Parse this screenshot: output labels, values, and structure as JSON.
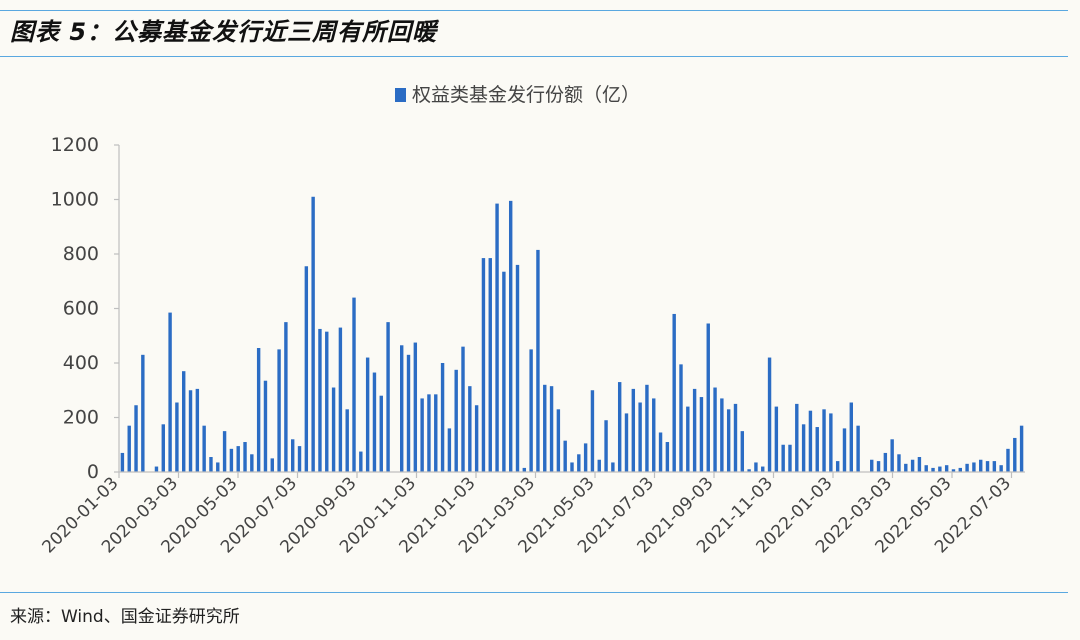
{
  "figure": {
    "title": "图表 5：公募基金发行近三周有所回暖",
    "source": "来源：Wind、国金证券研究所"
  },
  "colors": {
    "bar": "#2b6cc4",
    "axis": "#bfbfbf",
    "rule": "#5aa8e0"
  },
  "chart_data": {
    "type": "bar",
    "series": [
      {
        "name": "权益类基金发行份额（亿）"
      }
    ],
    "ylim": [
      0,
      1200
    ],
    "yticks": [
      0,
      200,
      400,
      600,
      800,
      1000,
      1200
    ],
    "xticks": [
      "2020-01-03",
      "2020-03-03",
      "2020-05-03",
      "2020-07-03",
      "2020-09-03",
      "2020-11-03",
      "2021-01-03",
      "2021-03-03",
      "2021-05-03",
      "2021-07-03",
      "2021-09-03",
      "2021-11-03",
      "2022-01-03",
      "2022-03-03",
      "2022-05-03",
      "2022-07-03"
    ],
    "grid": false,
    "legend": "top-center",
    "values": [
      70,
      170,
      245,
      430,
      0,
      20,
      175,
      585,
      255,
      370,
      300,
      305,
      170,
      55,
      35,
      150,
      85,
      95,
      110,
      65,
      455,
      335,
      50,
      450,
      550,
      120,
      95,
      755,
      1010,
      525,
      515,
      310,
      530,
      230,
      640,
      75,
      420,
      365,
      280,
      550,
      0,
      465,
      430,
      475,
      270,
      285,
      285,
      400,
      160,
      375,
      460,
      315,
      245,
      785,
      785,
      985,
      735,
      995,
      760,
      15,
      450,
      815,
      320,
      315,
      230,
      115,
      35,
      65,
      105,
      300,
      45,
      190,
      35,
      330,
      215,
      305,
      255,
      320,
      270,
      145,
      110,
      580,
      395,
      240,
      305,
      275,
      545,
      310,
      270,
      230,
      250,
      150,
      10,
      35,
      20,
      420,
      240,
      100,
      100,
      250,
      175,
      225,
      165,
      230,
      215,
      40,
      160,
      255,
      170,
      0,
      45,
      40,
      70,
      120,
      65,
      30,
      45,
      55,
      25,
      15,
      20,
      25,
      10,
      15,
      30,
      35,
      45,
      40,
      40,
      25,
      85,
      125,
      170
    ]
  }
}
